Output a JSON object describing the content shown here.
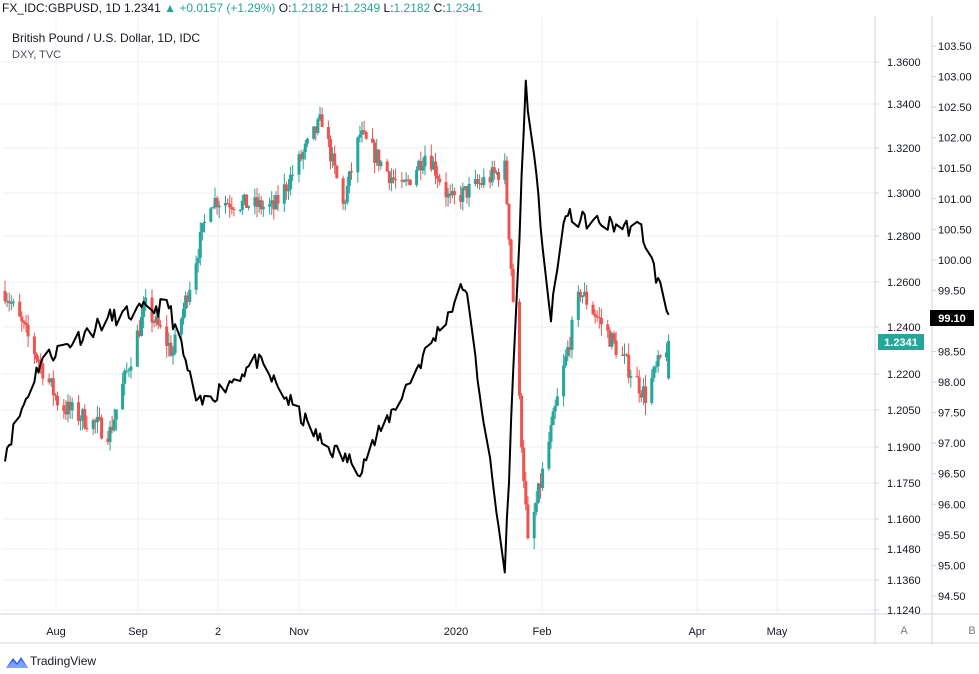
{
  "header": {
    "symbol": "FX_IDC:GBPUSD, 1D",
    "last": "1.2341",
    "change": "+0.0157 (+1.29%)",
    "open_label": "O:",
    "open": "1.2182",
    "high_label": "H:",
    "high": "1.2349",
    "low_label": "L:",
    "low": "1.2182",
    "close_label": "C:",
    "close": "1.2341"
  },
  "legend": {
    "main_series": "British Pound / U.S. Dollar, 1D, IDC",
    "overlay_series": "DXY, TVC"
  },
  "footer": {
    "brand": "TradingView"
  },
  "scale_buttons": {
    "a": "A",
    "b": "B"
  },
  "colors": {
    "up": "#26a69a",
    "down": "#ef5350",
    "dxy": "#000000",
    "grid": "#eef0f4",
    "axis": "#d1d4dc"
  },
  "chart_data": {
    "type": "candlestick",
    "x_axis_labels": [
      "Aug",
      "Sep",
      "2",
      "Nov",
      "2020",
      "Feb",
      "Apr",
      "May"
    ],
    "axes": {
      "gbpusd": {
        "side": "right-inner",
        "ticks": [
          "1.3600",
          "1.3400",
          "1.3200",
          "1.3000",
          "1.2800",
          "1.2600",
          "1.2400",
          "1.2200",
          "1.2050",
          "1.1900",
          "1.1750",
          "1.1600",
          "1.1480",
          "1.1360",
          "1.1240"
        ],
        "last_value_label": "1.2341"
      },
      "dxy": {
        "side": "right-outer",
        "ticks": [
          "103.50",
          "103.00",
          "102.50",
          "102.00",
          "101.50",
          "101.00",
          "100.50",
          "100.00",
          "99.50",
          "99.00",
          "98.50",
          "98.00",
          "97.50",
          "97.00",
          "96.50",
          "96.00",
          "95.50",
          "95.00",
          "94.50"
        ],
        "last_value_label": "99.10"
      }
    },
    "gbpusd_key_points": [
      {
        "date": "2019-07-15",
        "close": 1.256
      },
      {
        "date": "2019-08-10",
        "close": 1.207
      },
      {
        "date": "2019-09-03",
        "close": 1.196
      },
      {
        "date": "2019-09-20",
        "close": 1.249
      },
      {
        "date": "2019-10-03",
        "close": 1.229
      },
      {
        "date": "2019-10-21",
        "close": 1.297
      },
      {
        "date": "2019-11-20",
        "close": 1.293
      },
      {
        "date": "2019-12-13",
        "close": 1.333
      },
      {
        "date": "2019-12-23",
        "close": 1.294
      },
      {
        "date": "2019-12-31",
        "close": 1.326
      },
      {
        "date": "2020-01-20",
        "close": 1.301
      },
      {
        "date": "2020-02-01",
        "close": 1.319
      },
      {
        "date": "2020-02-12",
        "close": 1.296
      },
      {
        "date": "2020-03-09",
        "close": 1.311
      },
      {
        "date": "2020-03-20",
        "close": 1.149
      },
      {
        "date": "2020-04-14",
        "close": 1.256
      },
      {
        "date": "2020-05-15",
        "close": 1.211
      },
      {
        "date": "2020-05-26",
        "close": 1.2341
      }
    ],
    "dxy_key_points": [
      {
        "date": "2019-07-15",
        "value": 96.85
      },
      {
        "date": "2019-08-01",
        "value": 98.35
      },
      {
        "date": "2019-09-03",
        "value": 99.05
      },
      {
        "date": "2019-10-01",
        "value": 99.25
      },
      {
        "date": "2019-10-15",
        "value": 97.6
      },
      {
        "date": "2019-11-12",
        "value": 98.35
      },
      {
        "date": "2019-12-13",
        "value": 97.0
      },
      {
        "date": "2019-12-31",
        "value": 96.6
      },
      {
        "date": "2020-02-19",
        "value": 99.6
      },
      {
        "date": "2020-03-09",
        "value": 94.9
      },
      {
        "date": "2020-03-19",
        "value": 102.9
      },
      {
        "date": "2020-03-31",
        "value": 99.0
      },
      {
        "date": "2020-04-06",
        "value": 100.7
      },
      {
        "date": "2020-05-13",
        "value": 100.5
      },
      {
        "date": "2020-05-26",
        "value": 99.1
      }
    ],
    "grid": true
  }
}
